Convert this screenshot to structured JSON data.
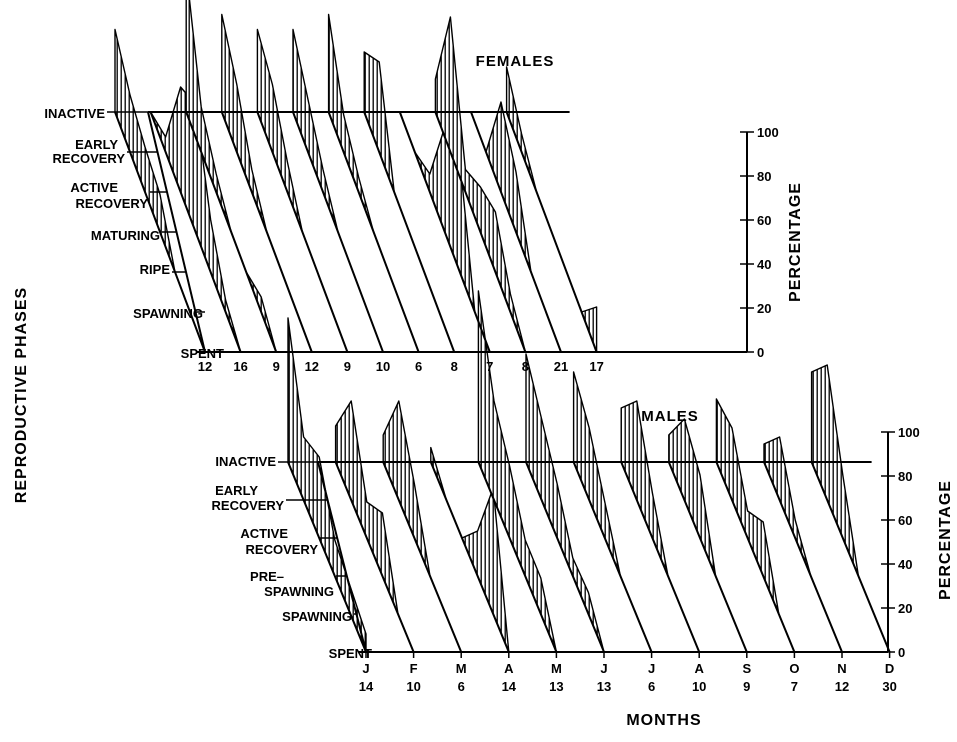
{
  "chart_data": [
    {
      "type": "area",
      "title": "FEMALES",
      "ylabel": "PERCENTAGE",
      "ylim": [
        0,
        100
      ],
      "yticks": [
        "0",
        "20",
        "40",
        "60",
        "80",
        "100"
      ],
      "phases": [
        "INACTIVE",
        "EARLY RECOVERY",
        "ACTIVE RECOVERY",
        "MATURING",
        "RIPE",
        "SPAWNING",
        "SPENT"
      ],
      "sample_sizes": [
        "12",
        "16",
        "9",
        "12",
        "9",
        "10",
        "6",
        "8",
        "7",
        "8",
        "21",
        "17"
      ],
      "series": [
        {
          "month_index": 0,
          "values": [
            55,
            38,
            30,
            25,
            0,
            0,
            0
          ]
        },
        {
          "month_index": 1,
          "values": [
            0,
            10,
            70,
            85,
            35,
            8,
            0
          ]
        },
        {
          "month_index": 2,
          "values": [
            95,
            30,
            12,
            0,
            0,
            10,
            0
          ]
        },
        {
          "month_index": 3,
          "values": [
            65,
            45,
            15,
            0,
            0,
            0,
            0
          ]
        },
        {
          "month_index": 4,
          "values": [
            55,
            45,
            20,
            0,
            0,
            0,
            0
          ]
        },
        {
          "month_index": 5,
          "values": [
            55,
            35,
            15,
            0,
            0,
            0,
            0
          ]
        },
        {
          "month_index": 6,
          "values": [
            65,
            25,
            10,
            0,
            0,
            0,
            0
          ]
        },
        {
          "month_index": 7,
          "values": [
            40,
            60,
            0,
            0,
            0,
            0,
            0
          ]
        },
        {
          "month_index": 8,
          "values": [
            0,
            0,
            12,
            70,
            75,
            0,
            0
          ]
        },
        {
          "month_index": 9,
          "values": [
            22,
            90,
            15,
            30,
            40,
            12,
            0
          ]
        },
        {
          "month_index": 10,
          "values": [
            0,
            0,
            60,
            40,
            0,
            0,
            0
          ]
        },
        {
          "month_index": 11,
          "values": [
            30,
            12,
            0,
            0,
            0,
            0,
            30
          ]
        }
      ]
    },
    {
      "type": "area",
      "title": "MALES",
      "ylabel": "PERCENTAGE",
      "ylim": [
        0,
        100
      ],
      "yticks": [
        "0",
        "20",
        "40",
        "60",
        "80",
        "100"
      ],
      "phases": [
        "INACTIVE",
        "EARLY RECOVERY",
        "ACTIVE RECOVERY",
        "PRE-SPAWNING",
        "SPAWNING",
        "SPENT"
      ],
      "months": [
        "J",
        "F",
        "M",
        "A",
        "M",
        "J",
        "J",
        "A",
        "S",
        "O",
        "N",
        "D"
      ],
      "sample_sizes": [
        "14",
        "10",
        "6",
        "14",
        "13",
        "13",
        "6",
        "10",
        "9",
        "7",
        "12",
        "30"
      ],
      "series": [
        {
          "month_index": 0,
          "values": [
            80,
            35,
            45,
            20,
            15,
            10
          ]
        },
        {
          "month_index": 1,
          "values": [
            20,
            55,
            20,
            35,
            0,
            0
          ]
        },
        {
          "month_index": 2,
          "values": [
            15,
            55,
            30,
            0,
            0,
            0
          ]
        },
        {
          "month_index": 3,
          "values": [
            8,
            0,
            0,
            25,
            70,
            0
          ]
        },
        {
          "month_index": 4,
          "values": [
            95,
            55,
            40,
            20,
            20,
            0
          ]
        },
        {
          "month_index": 5,
          "values": [
            60,
            45,
            30,
            10,
            12,
            0
          ]
        },
        {
          "month_index": 6,
          "values": [
            50,
            40,
            20,
            0,
            0,
            0
          ]
        },
        {
          "month_index": 7,
          "values": [
            30,
            55,
            25,
            0,
            0,
            0
          ]
        },
        {
          "month_index": 8,
          "values": [
            15,
            45,
            35,
            0,
            0,
            0
          ]
        },
        {
          "month_index": 9,
          "values": [
            35,
            40,
            15,
            30,
            0,
            0
          ]
        },
        {
          "month_index": 10,
          "values": [
            10,
            35,
            10,
            0,
            0,
            0
          ]
        },
        {
          "month_index": 11,
          "values": [
            50,
            75,
            35,
            0,
            0,
            0
          ]
        }
      ]
    }
  ],
  "shared_ylabel": "REPRODUCTIVE PHASES",
  "shared_xlabel": "MONTHS"
}
